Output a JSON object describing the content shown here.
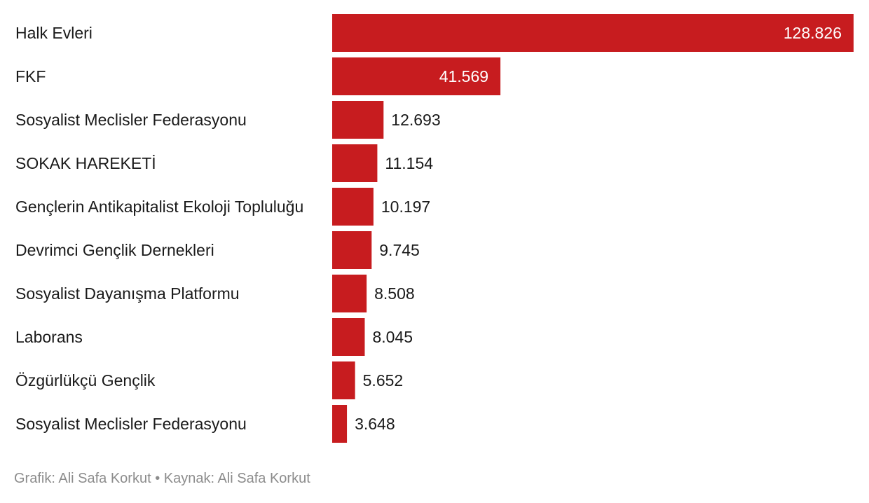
{
  "chart_data": {
    "type": "bar",
    "orientation": "horizontal",
    "categories": [
      "Halk Evleri",
      "FKF",
      "Sosyalist Meclisler Federasyonu",
      "SOKAK HAREKETİ",
      "Gençlerin Antikapitalist Ekoloji Topluluğu",
      "Devrimci Gençlik Dernekleri",
      "Sosyalist Dayanışma Platformu",
      "Laborans",
      "Özgürlükçü Gençlik",
      "Sosyalist Meclisler Federasyonu"
    ],
    "values": [
      128826,
      41569,
      12693,
      11154,
      10197,
      9745,
      8508,
      8045,
      5652,
      3648
    ],
    "value_labels": [
      "128.826",
      "41.569",
      "12.693",
      "11.154",
      "10.197",
      "9.745",
      "8.508",
      "8.045",
      "5.652",
      "3.648"
    ],
    "xlim": [
      0,
      128826
    ],
    "grid": false,
    "bar_color": "#c71c1f",
    "label_inside_color": "#ffffff",
    "label_outside_color": "#1a1a1a"
  },
  "footer": {
    "text": "Grafik: Ali Safa Korkut • Kaynak: Ali Safa Korkut"
  }
}
